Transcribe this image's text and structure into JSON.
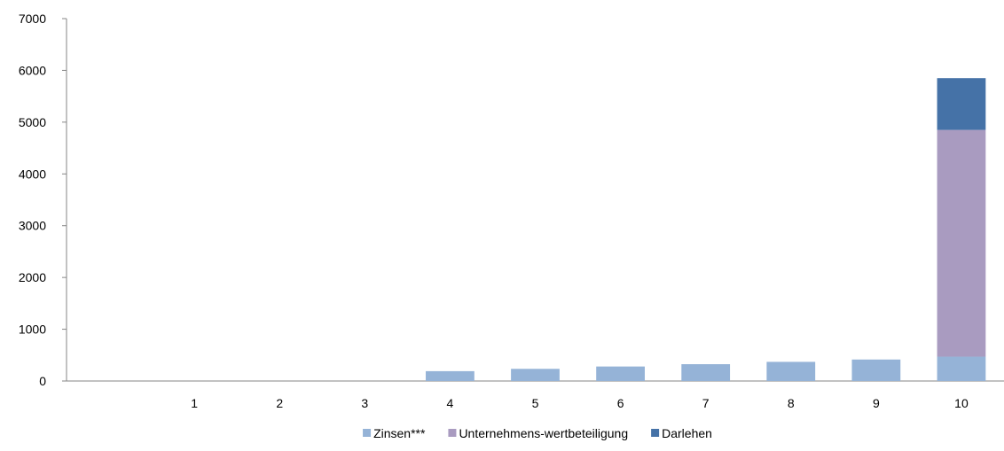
{
  "chart_data": {
    "type": "bar",
    "stacked": true,
    "title": "",
    "xlabel": "",
    "ylabel": "",
    "categories": [
      "",
      "1",
      "2",
      "3",
      "4",
      "5",
      "6",
      "7",
      "8",
      "9",
      "10"
    ],
    "series": [
      {
        "name": "Zinsen***",
        "color": "#95b3d7",
        "values": [
          0,
          0,
          0,
          0,
          190,
          235,
          280,
          325,
          370,
          415,
          470
        ]
      },
      {
        "name": "Unternehmens-wertbeteiligung",
        "color": "#a99bc0",
        "values": [
          0,
          0,
          0,
          0,
          0,
          0,
          0,
          0,
          0,
          0,
          4380
        ]
      },
      {
        "name": "Darlehen",
        "color": "#4572a7",
        "values": [
          0,
          0,
          0,
          0,
          0,
          0,
          0,
          0,
          0,
          0,
          1000
        ]
      }
    ],
    "ylim": [
      0,
      7000
    ],
    "yticks": [
      "0",
      "1000",
      "2000",
      "3000",
      "4000",
      "5000",
      "6000",
      "7000"
    ],
    "grid": false,
    "legend_position": "bottom"
  }
}
